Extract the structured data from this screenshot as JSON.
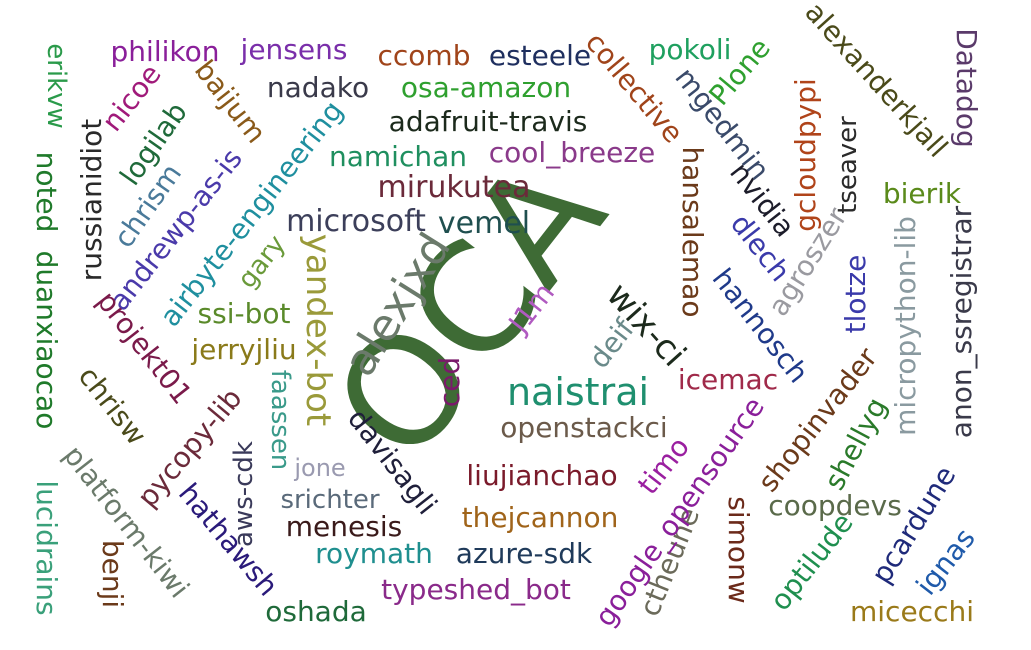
{
  "words": [
    {
      "text": "OCA",
      "color": "#3e6b35",
      "orientation": "diagonal-up"
    },
    {
      "text": "alexjxd",
      "color": "#6b7a6b",
      "orientation": "diagonal-up"
    },
    {
      "text": "naistrai",
      "color": "#1f8f6f",
      "orientation": "horizontal"
    },
    {
      "text": "wix-ci",
      "color": "#1c2a1c",
      "orientation": "diagonal-down"
    },
    {
      "text": "yandex-bot",
      "color": "#9a9a3a",
      "orientation": "vertical-down"
    },
    {
      "text": "microsoft",
      "color": "#3c3f5a",
      "orientation": "horizontal"
    },
    {
      "text": "vemel",
      "color": "#1f4f4f",
      "orientation": "horizontal"
    },
    {
      "text": "mirukutea",
      "color": "#6b2a3a",
      "orientation": "horizontal"
    },
    {
      "text": "openstackci",
      "color": "#6b5a4a",
      "orientation": "horizontal"
    },
    {
      "text": "cool_breeze",
      "color": "#8a3a8a",
      "orientation": "horizontal"
    },
    {
      "text": "namichan",
      "color": "#1f8f5f",
      "orientation": "horizontal"
    },
    {
      "text": "adafruit-travis",
      "color": "#1c2a1c",
      "orientation": "horizontal"
    },
    {
      "text": "osa-amazon",
      "color": "#2fa02f",
      "orientation": "horizontal"
    },
    {
      "text": "nadako",
      "color": "#3a3a4a",
      "orientation": "horizontal"
    },
    {
      "text": "ccomb",
      "color": "#a0441a",
      "orientation": "horizontal"
    },
    {
      "text": "esteele",
      "color": "#1f2f5f",
      "orientation": "horizontal"
    },
    {
      "text": "philikon",
      "color": "#8a1f9a",
      "orientation": "horizontal"
    },
    {
      "text": "jensens",
      "color": "#7a2faa",
      "orientation": "horizontal"
    },
    {
      "text": "pokoli",
      "color": "#1fa05f",
      "orientation": "horizontal"
    },
    {
      "text": "collective",
      "color": "#a0441a",
      "orientation": "diagonal-down"
    },
    {
      "text": "Plone",
      "color": "#2fa02f",
      "orientation": "diagonal-up"
    },
    {
      "text": "mgedmin",
      "color": "#3a4a6a",
      "orientation": "diagonal-down"
    },
    {
      "text": "alexanderkjall",
      "color": "#4a4a1a",
      "orientation": "diagonal-down"
    },
    {
      "text": "Datadog",
      "color": "#5a3a6a",
      "orientation": "vertical-down"
    },
    {
      "text": "gcloudpypi",
      "color": "#b0441a",
      "orientation": "vertical-up"
    },
    {
      "text": "tseaver",
      "color": "#2a2a2a",
      "orientation": "vertical-up"
    },
    {
      "text": "nvidia",
      "color": "#1c1c2a",
      "orientation": "diagonal-down"
    },
    {
      "text": "dlech",
      "color": "#3a3aaa",
      "orientation": "diagonal-down"
    },
    {
      "text": "hansalemao",
      "color": "#6b3a1a",
      "orientation": "vertical-down"
    },
    {
      "text": "hannosch",
      "color": "#1f3a8a",
      "orientation": "diagonal-down"
    },
    {
      "text": "agroszer",
      "color": "#9a9aa0",
      "orientation": "diagonal-up"
    },
    {
      "text": "tlotze",
      "color": "#3a3aaa",
      "orientation": "vertical-up"
    },
    {
      "text": "bierik",
      "color": "#5a8a1a",
      "orientation": "horizontal"
    },
    {
      "text": "micropython-lib",
      "color": "#8a9aa0",
      "orientation": "vertical-up"
    },
    {
      "text": "anon_ssregistrar",
      "color": "#3a3a4a",
      "orientation": "vertical-up"
    },
    {
      "text": "shopinvader",
      "color": "#6b3a1a",
      "orientation": "diagonal-up"
    },
    {
      "text": "shellyg",
      "color": "#2a7a2a",
      "orientation": "diagonal-up"
    },
    {
      "text": "coopdevs",
      "color": "#5a6a4a",
      "orientation": "horizontal"
    },
    {
      "text": "pcardune",
      "color": "#1f2a7a",
      "orientation": "diagonal-up"
    },
    {
      "text": "ignas",
      "color": "#1f5aaa",
      "orientation": "diagonal-up"
    },
    {
      "text": "optilude",
      "color": "#1f8f4f",
      "orientation": "diagonal-up"
    },
    {
      "text": "micecchi",
      "color": "#9a7a1a",
      "orientation": "horizontal"
    },
    {
      "text": "simonw",
      "color": "#6b2a1a",
      "orientation": "vertical-down"
    },
    {
      "text": "ctheune",
      "color": "#6b6a5a",
      "orientation": "diagonal-up"
    },
    {
      "text": "google_opensource",
      "color": "#8a1f9a",
      "orientation": "diagonal-up"
    },
    {
      "text": "timo",
      "color": "#9a1fa0",
      "orientation": "diagonal-up"
    },
    {
      "text": "icemac",
      "color": "#a02a4a",
      "orientation": "horizontal"
    },
    {
      "text": "deif",
      "color": "#6a8a8a",
      "orientation": "diagonal-up"
    },
    {
      "text": "J1m",
      "color": "#b05ac0",
      "orientation": "diagonal-up"
    },
    {
      "text": "ced",
      "color": "#7a1a6a",
      "orientation": "vertical-up"
    },
    {
      "text": "liujianchao",
      "color": "#7a1a2a",
      "orientation": "horizontal"
    },
    {
      "text": "thejcannon",
      "color": "#a0641a",
      "orientation": "horizontal"
    },
    {
      "text": "azure-sdk",
      "color": "#1f3a5a",
      "orientation": "horizontal"
    },
    {
      "text": "roymath",
      "color": "#1f8f8f",
      "orientation": "horizontal"
    },
    {
      "text": "menesis",
      "color": "#3a1a1a",
      "orientation": "horizontal"
    },
    {
      "text": "srichter",
      "color": "#5a6a7a",
      "orientation": "horizontal"
    },
    {
      "text": "typeshed_bot",
      "color": "#8a2a8a",
      "orientation": "horizontal"
    },
    {
      "text": "oshada",
      "color": "#1f6a3a",
      "orientation": "horizontal"
    },
    {
      "text": "davisagli",
      "color": "#1f1f3a",
      "orientation": "diagonal-down"
    },
    {
      "text": "jone",
      "color": "#9a9ab0",
      "orientation": "horizontal"
    },
    {
      "text": "faassen",
      "color": "#3a9a8a",
      "orientation": "vertical-down"
    },
    {
      "text": "aws-cdk",
      "color": "#3a3a5a",
      "orientation": "vertical-up"
    },
    {
      "text": "hathawsh",
      "color": "#2a1a7a",
      "orientation": "diagonal-down"
    },
    {
      "text": "pycopy-lib",
      "color": "#6b2a3a",
      "orientation": "diagonal-up"
    },
    {
      "text": "jerryjliu",
      "color": "#8a7a1a",
      "orientation": "horizontal"
    },
    {
      "text": "ssi-bot",
      "color": "#5a8a2a",
      "orientation": "horizontal"
    },
    {
      "text": "gary",
      "color": "#6a9a3a",
      "orientation": "diagonal-up"
    },
    {
      "text": "airbyte-engineering",
      "color": "#1f8f9f",
      "orientation": "diagonal-up"
    },
    {
      "text": "andrewp-as-is",
      "color": "#4a3aaa",
      "orientation": "diagonal-up"
    },
    {
      "text": "chrism",
      "color": "#4a7a9a",
      "orientation": "diagonal-up"
    },
    {
      "text": "logilab",
      "color": "#1f6a3a",
      "orientation": "diagonal-up"
    },
    {
      "text": "nicoe",
      "color": "#a01a7a",
      "orientation": "diagonal-up"
    },
    {
      "text": "baijum",
      "color": "#8a5a1a",
      "orientation": "diagonal-down"
    },
    {
      "text": "russianidiot",
      "color": "#2a2a2a",
      "orientation": "vertical-up"
    },
    {
      "text": "projekt01",
      "color": "#7a1a4a",
      "orientation": "diagonal-down"
    },
    {
      "text": "chrisw",
      "color": "#4a4a1a",
      "orientation": "diagonal-down"
    },
    {
      "text": "platform-kiwi",
      "color": "#6b7a6b",
      "orientation": "diagonal-down"
    },
    {
      "text": "erikvw",
      "color": "#2a9a4a",
      "orientation": "vertical-down"
    },
    {
      "text": "noted",
      "color": "#1f7a2a",
      "orientation": "vertical-down"
    },
    {
      "text": "duanxiaocao",
      "color": "#1f7a2a",
      "orientation": "vertical-down"
    },
    {
      "text": "lucidrains",
      "color": "#3aa07a",
      "orientation": "vertical-down"
    },
    {
      "text": "benji",
      "color": "#6b3a1a",
      "orientation": "vertical-down"
    }
  ]
}
